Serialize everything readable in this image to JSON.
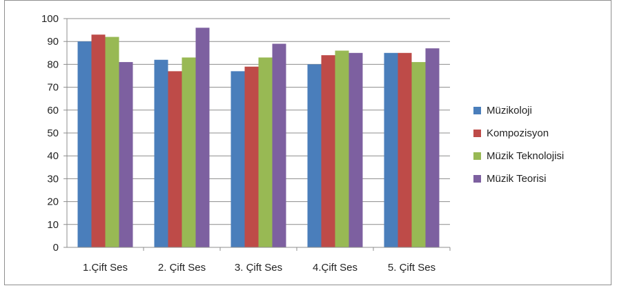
{
  "chart_data": {
    "type": "bar",
    "title": "",
    "xlabel": "",
    "ylabel": "",
    "ylim": [
      0,
      100
    ],
    "yticks": [
      "0",
      "10",
      "20",
      "30",
      "40",
      "50",
      "60",
      "70",
      "80",
      "90",
      "100"
    ],
    "grid": true,
    "legend_position": "right",
    "categories": [
      "1.Çift Ses",
      "2. Çift Ses",
      "3. Çift Ses",
      "4.Çift Ses",
      "5. Çift Ses"
    ],
    "series": [
      {
        "name": "Müzikoloji",
        "color": "#4a7ebb",
        "values": [
          90,
          82,
          77,
          80,
          85
        ]
      },
      {
        "name": "Kompozisyon",
        "color": "#be4b48",
        "values": [
          93,
          77,
          79,
          84,
          85
        ]
      },
      {
        "name": "Müzik Teknolojisi",
        "color": "#98b954",
        "values": [
          92,
          83,
          83,
          86,
          81
        ]
      },
      {
        "name": "Müzik Teorisi",
        "color": "#7d60a0",
        "values": [
          81,
          96,
          89,
          85,
          87
        ]
      }
    ]
  }
}
